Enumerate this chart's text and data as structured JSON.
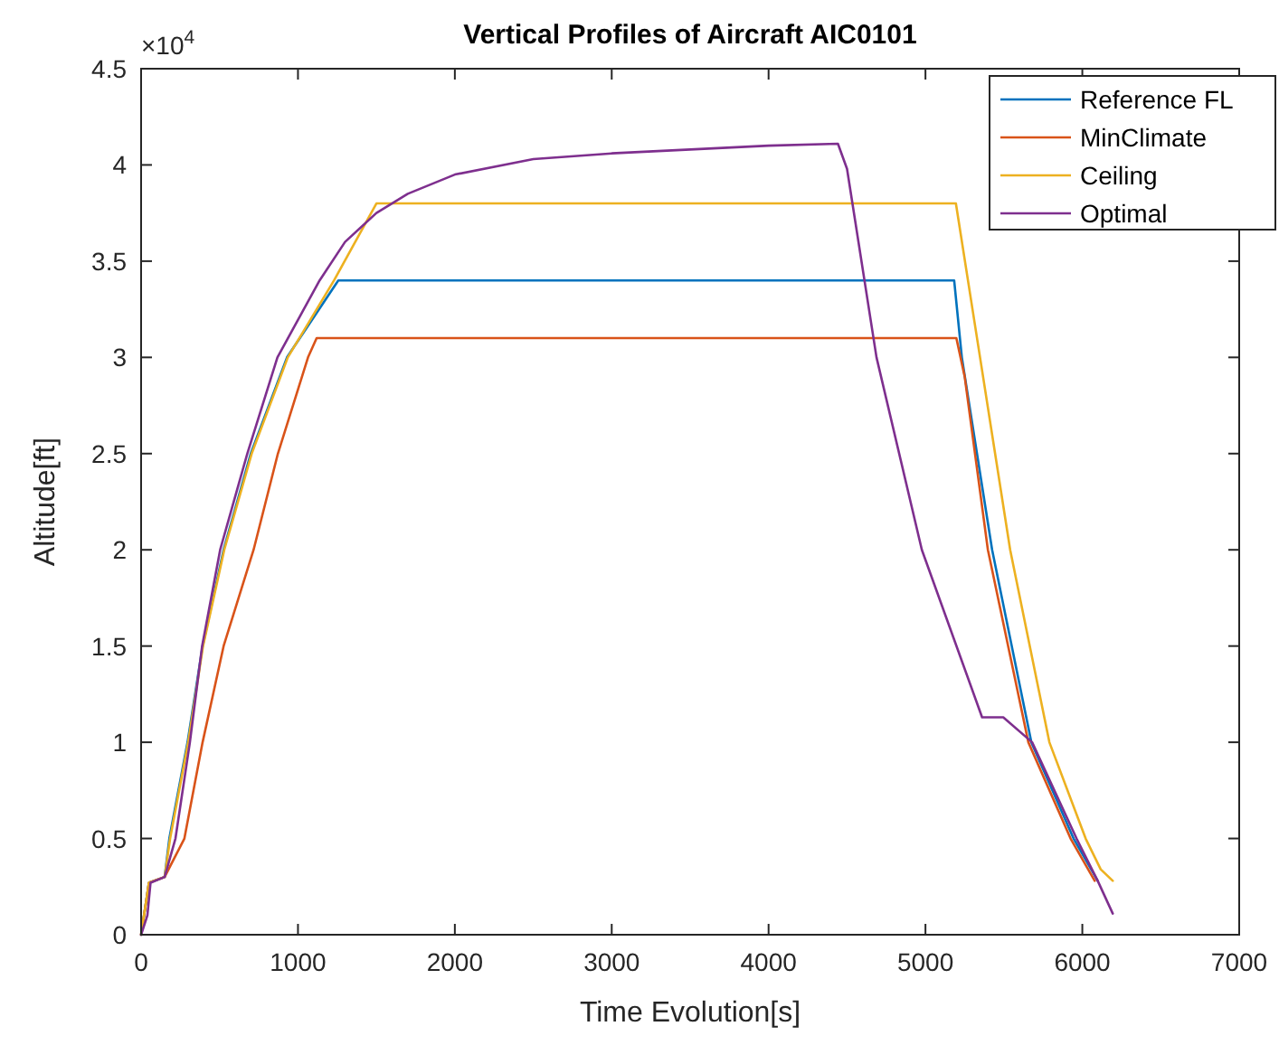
{
  "chart_data": {
    "type": "line",
    "title": "Vertical Profiles of Aircraft AIC0101",
    "xlabel": "Time Evolution[s]",
    "ylabel": "Altitude[ft]",
    "annotations": [
      "×10$^{4}$"
    ],
    "xlim": [
      0,
      7000
    ],
    "xticks": [
      0,
      1000,
      2000,
      3000,
      4000,
      5000,
      6000,
      7000
    ],
    "ylim": [
      0,
      4.5
    ],
    "yticks": [
      0,
      0.5,
      1,
      1.5,
      2,
      2.5,
      3,
      3.5,
      4,
      4.5
    ],
    "grid": false,
    "legend": "top right",
    "marker": "none",
    "line_style": "solid",
    "series": [
      {
        "name": "Reference FL",
        "color": "#0072bd",
        "x": [
          0,
          50,
          150,
          180,
          296,
          392,
          526,
          699,
          930,
          1257,
          5183,
          5232,
          5425,
          5675,
          5944,
          6098
        ],
        "values": [
          0,
          0.27,
          0.3,
          0.5,
          1.0,
          1.5,
          2.0,
          2.5,
          3.0,
          3.4,
          3.4,
          3.0,
          2.0,
          1.0,
          0.5,
          0.28
        ]
      },
      {
        "name": "MinClimate",
        "color": "#d95319",
        "x": [
          0,
          50,
          150,
          276,
          392,
          526,
          717,
          872,
          1064,
          1119,
          5197,
          5250,
          5398,
          5656,
          5925,
          6079
        ],
        "values": [
          0,
          0.27,
          0.3,
          0.5,
          1.0,
          1.5,
          2.0,
          2.5,
          3.0,
          3.1,
          3.1,
          2.9,
          2.0,
          1.0,
          0.5,
          0.28
        ]
      },
      {
        "name": "Ceiling",
        "color": "#edb120",
        "x": [
          0,
          50,
          150,
          185,
          300,
          395,
          530,
          705,
          935,
          1230,
          1500,
          5194,
          5348,
          5540,
          5790,
          6021,
          6117,
          6194
        ],
        "values": [
          0,
          0.27,
          0.3,
          0.5,
          1.0,
          1.5,
          2.0,
          2.5,
          3.0,
          3.4,
          3.8,
          3.8,
          3.0,
          2.0,
          1.0,
          0.5,
          0.34,
          0.28
        ]
      },
      {
        "name": "Optimal",
        "color": "#7e2f8e",
        "x": [
          0,
          40,
          60,
          150,
          219,
          311,
          389,
          504,
          677,
          869,
          1138,
          1300,
          1500,
          1700,
          2000,
          2500,
          3000,
          3500,
          4000,
          4442,
          4500,
          4688,
          4977,
          5361,
          5496,
          5680,
          5963,
          6098,
          6194
        ],
        "values": [
          0,
          0.1,
          0.27,
          0.3,
          0.5,
          1.0,
          1.5,
          2.0,
          2.5,
          3.0,
          3.4,
          3.6,
          3.75,
          3.85,
          3.95,
          4.03,
          4.06,
          4.08,
          4.1,
          4.11,
          3.98,
          3.0,
          2.0,
          1.13,
          1.13,
          1.0,
          0.5,
          0.28,
          0.11
        ]
      }
    ]
  }
}
